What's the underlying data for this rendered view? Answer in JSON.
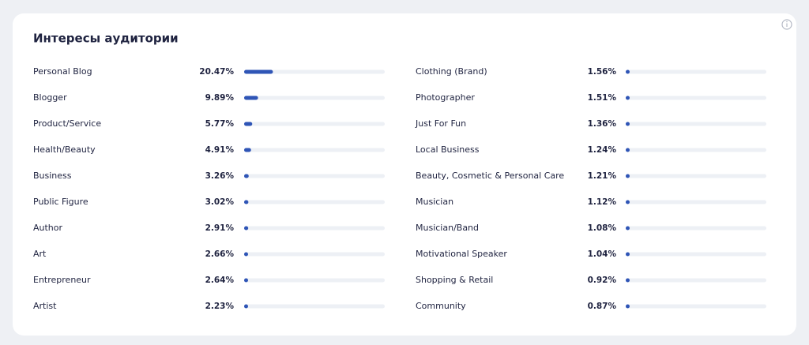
{
  "card": {
    "title": "Интересы аудитории",
    "xlim": [
      0,
      100
    ],
    "columns": [
      {
        "categories": [
          "Personal Blog",
          "Blogger",
          "Product/Service",
          "Health/Beauty",
          "Business",
          "Public Figure",
          "Author",
          "Art",
          "Entrepreneur",
          "Artist"
        ],
        "values": [
          20.47,
          9.89,
          5.77,
          4.91,
          3.26,
          3.02,
          2.91,
          2.66,
          2.64,
          2.23
        ],
        "value_labels": [
          "20.47%",
          "9.89%",
          "5.77%",
          "4.91%",
          "3.26%",
          "3.02%",
          "2.91%",
          "2.66%",
          "2.64%",
          "2.23%"
        ]
      },
      {
        "categories": [
          "Clothing (Brand)",
          "Photographer",
          "Just For Fun",
          "Local Business",
          "Beauty, Cosmetic & Personal Care",
          "Musician",
          "Musician/Band",
          "Motivational Speaker",
          "Shopping & Retail",
          "Community"
        ],
        "values": [
          1.56,
          1.51,
          1.36,
          1.24,
          1.21,
          1.12,
          1.08,
          1.04,
          0.92,
          0.87
        ],
        "value_labels": [
          "1.56%",
          "1.51%",
          "1.36%",
          "1.24%",
          "1.21%",
          "1.12%",
          "1.08%",
          "1.04%",
          "0.92%",
          "0.87%"
        ]
      }
    ]
  }
}
